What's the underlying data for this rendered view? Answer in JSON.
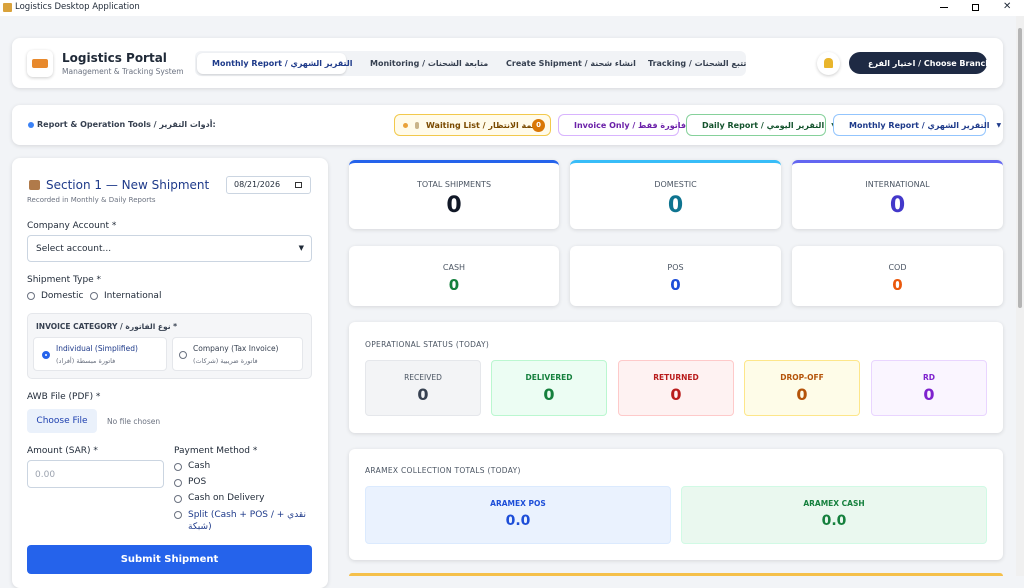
{
  "window": {
    "title": "Logistics Desktop Application"
  },
  "header": {
    "title": "Logistics Portal",
    "subtitle": "Management & Tracking System",
    "tabs": [
      "Monthly Report / التقرير الشهري",
      "Monitoring / متابعة الشحنات",
      "Create Shipment / انشاء شحنة",
      "Tracking / تتبع الشحنات"
    ],
    "branch_button": "اختيار الفرع / Choose Branch"
  },
  "toolbar": {
    "label": "Report & Operation Tools / أدوات التقرير:",
    "waiting_list": {
      "label": "Waiting List / قائمة الانتظار",
      "count": 0
    },
    "invoice_only": "Invoice Only / فاتورة فقط",
    "daily_report": "Daily Report / التقرير اليومي",
    "monthly_report": "Monthly Report / التقرير الشهري"
  },
  "form": {
    "title": "Section 1 — New Shipment",
    "subtitle": "Recorded in Monthly & Daily Reports",
    "date": "08/21/2026",
    "company_label": "Company Account *",
    "company_placeholder": "Select account...",
    "shipment_type_label": "Shipment Type *",
    "shipment_types": [
      "Domestic",
      "International"
    ],
    "invoice_label": "INVOICE CATEGORY / نوع الفاتورة *",
    "invoice_options": [
      {
        "title": "Individual (Simplified)",
        "subtitle": "فاتورة مبسطة (أفراد)"
      },
      {
        "title": "Company (Tax Invoice)",
        "subtitle": "فاتورة ضريبية (شركات)"
      }
    ],
    "awb_label": "AWB File (PDF) *",
    "awb_button": "Choose File",
    "awb_status": "No file chosen",
    "amount_label": "Amount (SAR) *",
    "amount_placeholder": "0.00",
    "payment_label": "Payment Method *",
    "payment_options": [
      "Cash",
      "POS",
      "Cash on Delivery",
      "Split (Cash + POS / نقدي + شبكة)"
    ],
    "submit": "Submit Shipment"
  },
  "stats": {
    "top": [
      {
        "label": "TOTAL SHIPMENTS",
        "value": 0
      },
      {
        "label": "DOMESTIC",
        "value": 0
      },
      {
        "label": "INTERNATIONAL",
        "value": 0
      }
    ],
    "payments": [
      {
        "label": "CASH",
        "value": 0
      },
      {
        "label": "POS",
        "value": 0
      },
      {
        "label": "COD",
        "value": 0
      }
    ]
  },
  "operational": {
    "title": "OPERATIONAL STATUS (TODAY)",
    "items": [
      {
        "label": "RECEIVED",
        "value": 0
      },
      {
        "label": "DELIVERED",
        "value": 0
      },
      {
        "label": "RETURNED",
        "value": 0
      },
      {
        "label": "DROP-OFF",
        "value": 0
      },
      {
        "label": "RD",
        "value": 0
      }
    ]
  },
  "aramex": {
    "title": "ARAMEX COLLECTION TOTALS (TODAY)",
    "items": [
      {
        "label": "ARAMEX POS",
        "value": "0.0"
      },
      {
        "label": "ARAMEX CASH",
        "value": "0.0"
      }
    ]
  }
}
